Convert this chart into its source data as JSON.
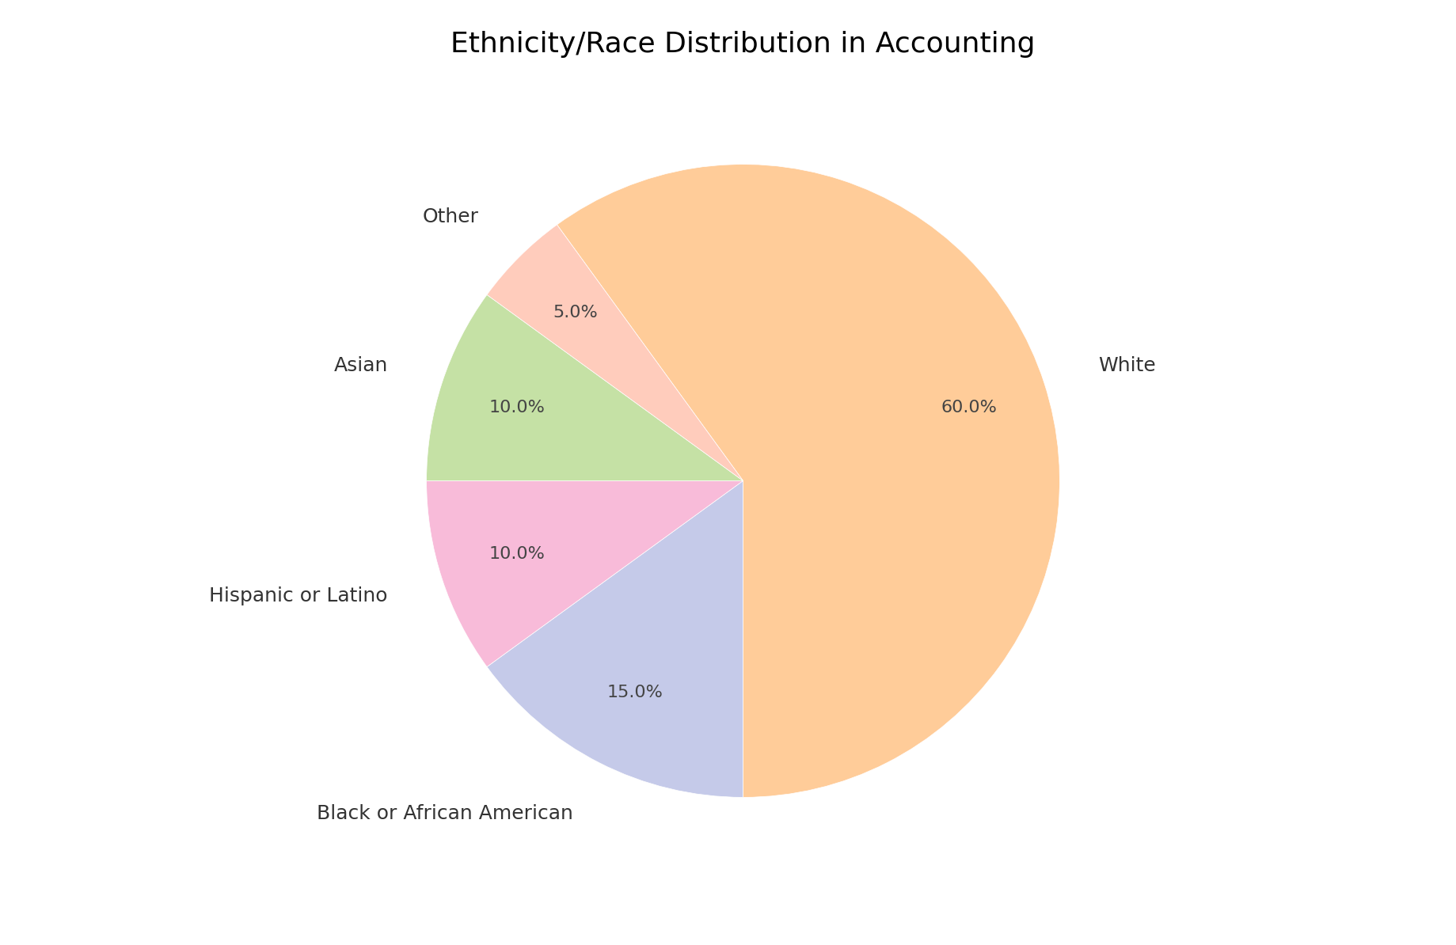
{
  "title": "Ethnicity/Race Distribution in Accounting",
  "title_fontsize": 26,
  "labels": [
    "White",
    "Black or African American",
    "Hispanic or Latino",
    "Asian",
    "Other"
  ],
  "values": [
    60.0,
    15.0,
    10.0,
    10.0,
    5.0
  ],
  "colors": [
    "#FFCC99",
    "#C5CAE9",
    "#F8BBD9",
    "#C5E1A5",
    "#FFCCBC"
  ],
  "autopct_fontsize": 16,
  "label_fontsize": 18,
  "startangle": 126,
  "background_color": "#FFFFFF",
  "pctdistance": 0.75,
  "label_distances": [
    1.18,
    1.18,
    1.18,
    1.18,
    1.18
  ]
}
